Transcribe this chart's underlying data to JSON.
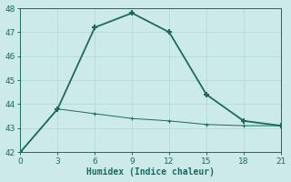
{
  "xlabel": "Humidex (Indice chaleur)",
  "background_color": "#cceae7",
  "line_color": "#1a6b5e",
  "grid_color": "#b8ddd9",
  "x_main": [
    0,
    3,
    6,
    9,
    12,
    15,
    18,
    21
  ],
  "y_main": [
    42,
    43.8,
    47.2,
    47.8,
    47.0,
    44.4,
    43.3,
    43.1
  ],
  "x_second": [
    0,
    3,
    6,
    9,
    12,
    15,
    18,
    21
  ],
  "y_second": [
    42,
    43.8,
    43.6,
    43.4,
    43.3,
    43.15,
    43.1,
    43.1
  ],
  "xlim": [
    0,
    21
  ],
  "ylim": [
    42,
    48
  ],
  "xticks": [
    0,
    3,
    6,
    9,
    12,
    15,
    18,
    21
  ],
  "yticks": [
    42,
    43,
    44,
    45,
    46,
    47,
    48
  ],
  "marker": "+",
  "marker_size": 5,
  "linewidth_main": 1.3,
  "linewidth_second": 0.7
}
